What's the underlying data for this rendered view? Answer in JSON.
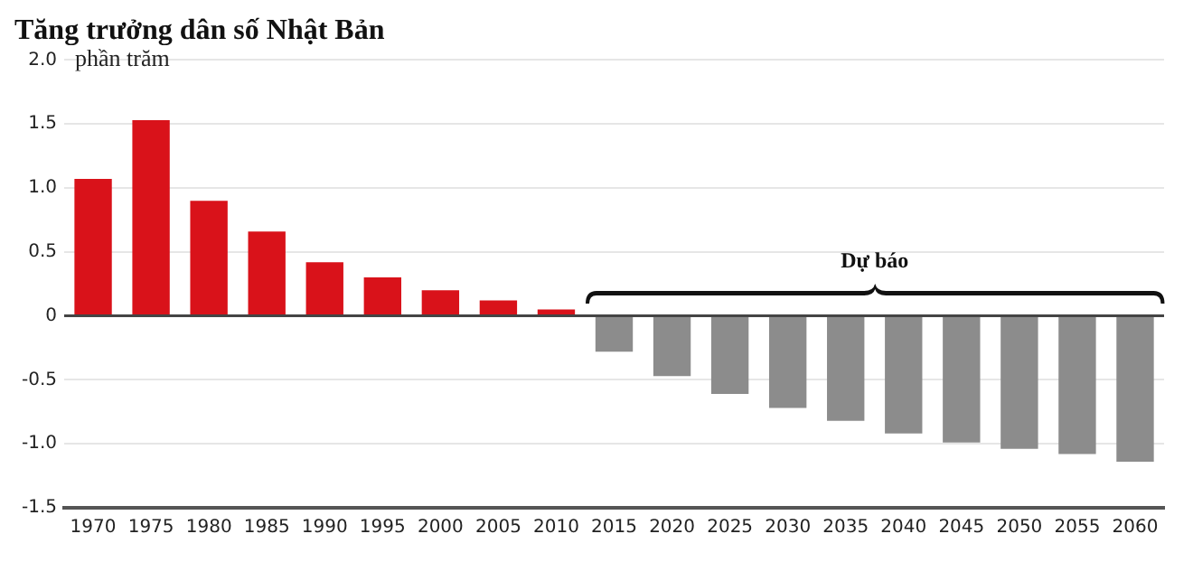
{
  "chart_data": {
    "type": "bar",
    "title": "Tăng trưởng dân số Nhật Bản",
    "ylabel": "phần trăm",
    "categories": [
      "1970",
      "1975",
      "1980",
      "1985",
      "1990",
      "1995",
      "2000",
      "2005",
      "2010",
      "2015",
      "2020",
      "2025",
      "2030",
      "2035",
      "2040",
      "2045",
      "2050",
      "2055",
      "2060"
    ],
    "values": [
      1.07,
      1.53,
      0.9,
      0.66,
      0.42,
      0.3,
      0.2,
      0.12,
      0.05,
      -0.28,
      -0.47,
      -0.61,
      -0.72,
      -0.82,
      -0.92,
      -0.99,
      -1.04,
      -1.08,
      -1.14
    ],
    "colors": [
      "#d9121a",
      "#d9121a",
      "#d9121a",
      "#d9121a",
      "#d9121a",
      "#d9121a",
      "#d9121a",
      "#d9121a",
      "#d9121a",
      "#8c8c8c",
      "#8c8c8c",
      "#8c8c8c",
      "#8c8c8c",
      "#8c8c8c",
      "#8c8c8c",
      "#8c8c8c",
      "#8c8c8c",
      "#8c8c8c",
      "#8c8c8c"
    ],
    "ylim": [
      -1.5,
      2.0
    ],
    "yticks": [
      {
        "value": 2.0,
        "label": "2.0"
      },
      1.5,
      {
        "value": 1.0,
        "label": "1.0"
      },
      0.5,
      0,
      -0.5,
      {
        "value": -1.0,
        "label": "-1.0"
      },
      -1.5
    ],
    "annotations": [
      "Dự báo"
    ],
    "grid": "y",
    "legend": false
  }
}
